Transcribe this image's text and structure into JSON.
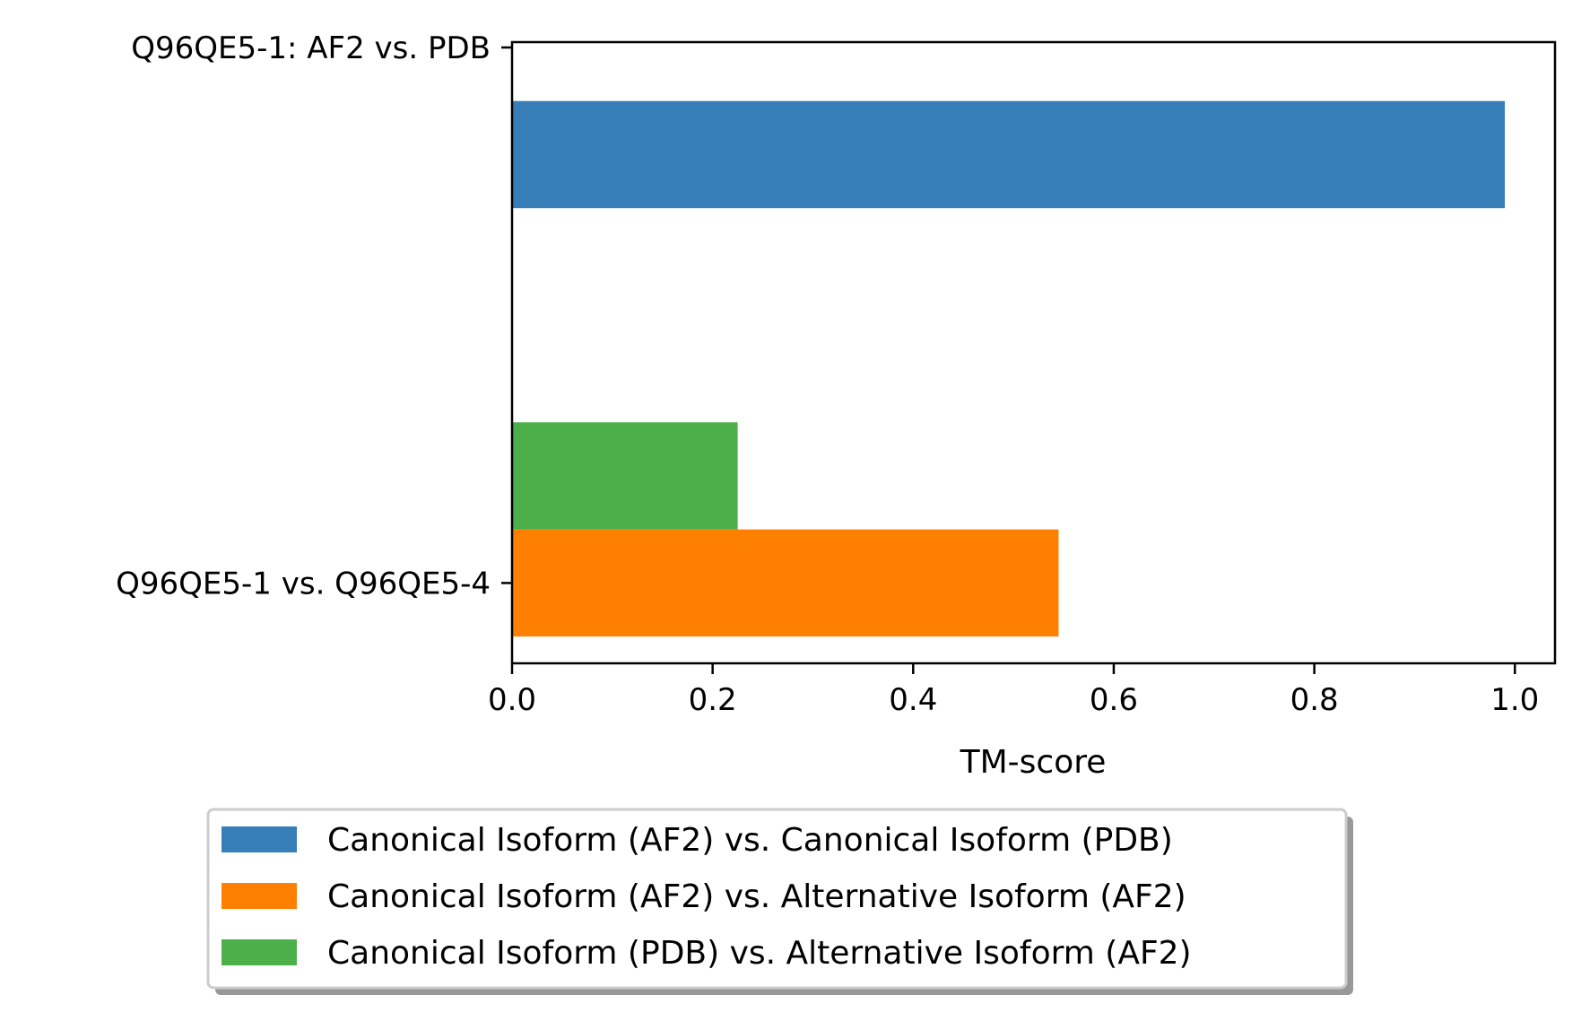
{
  "chart_data": {
    "type": "bar",
    "orientation": "horizontal",
    "categories": [
      "Q96QE5-1 vs. Q96QE5-4",
      "Q96QE5-1: AF2 vs. PDB"
    ],
    "series": [
      {
        "name": "Canonical Isoform (AF2) vs. Canonical Isoform (PDB)",
        "color": "#377eb8",
        "values": [
          null,
          0.99
        ]
      },
      {
        "name": "Canonical Isoform (AF2) vs. Alternative Isoform (AF2)",
        "color": "#ff7f00",
        "values": [
          0.545,
          null
        ]
      },
      {
        "name": "Canonical Isoform (PDB) vs. Alternative Isoform (AF2)",
        "color": "#4daf4a",
        "values": [
          0.225,
          null
        ]
      }
    ],
    "xlabel": "TM-score",
    "ylabel": "",
    "xlim": [
      0,
      1.04
    ],
    "xticks": [
      "0.0",
      "0.2",
      "0.4",
      "0.6",
      "0.8",
      "1.0"
    ],
    "grid": false,
    "legend_position": "bottom-center"
  }
}
